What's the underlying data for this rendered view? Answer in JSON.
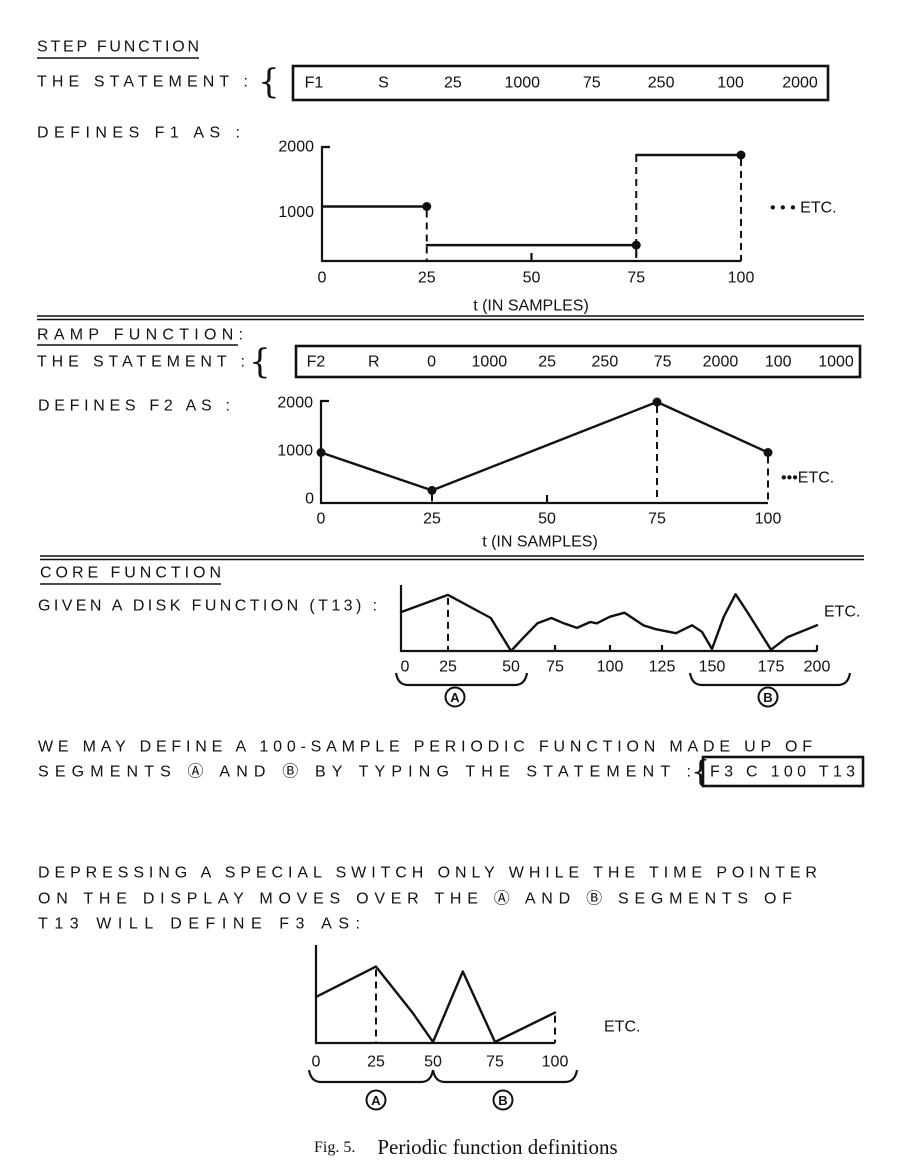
{
  "step": {
    "title": "STEP FUNCTION",
    "statement_label": "THE STATEMENT :",
    "statement_tokens": [
      "F1",
      "S",
      "25",
      "1000",
      "75",
      "250",
      "100",
      "2000"
    ],
    "defines_label": "DEFINES F1 AS :",
    "etc": "• • • ETC."
  },
  "ramp": {
    "title": "RAMP FUNCTION:",
    "statement_label": "THE STATEMENT :",
    "statement_tokens": [
      "F2",
      "R",
      "0",
      "1000",
      "25",
      "250",
      "75",
      "2000",
      "100",
      "1000"
    ],
    "defines_label": "DEFINES F2 AS :",
    "etc": "•••ETC."
  },
  "core": {
    "title": "CORE FUNCTION",
    "given_label": "GIVEN A DISK FUNCTION (T13) :",
    "etc": "ETC.",
    "segment_a": "A",
    "segment_b": "B",
    "para1_line1": "WE MAY DEFINE A 100-SAMPLE PERIODIC FUNCTION MADE UP OF",
    "para1_line2": "SEGMENTS Ⓐ AND Ⓑ BY TYPING THE STATEMENT :",
    "statement": "F3 C 100 T13",
    "para2_line1": "DEPRESSING A SPECIAL SWITCH ONLY WHILE THE TIME POINTER",
    "para2_line2": "ON THE DISPLAY MOVES OVER THE Ⓐ AND Ⓑ SEGMENTS OF",
    "para2_line3": "T13 WILL DEFINE F3 AS:",
    "result_etc": "ETC."
  },
  "caption": {
    "fig": "Fig. 5.",
    "text": "Periodic function definitions"
  },
  "chart_data": [
    {
      "type": "line",
      "name_on_page": "F1",
      "step": true,
      "xlabel": "t (IN SAMPLES)",
      "x_ticks": [
        "0",
        "25",
        "50",
        "75",
        "100"
      ],
      "y_ticks": [
        "2000",
        "1000"
      ],
      "xlim": [
        0,
        100
      ],
      "ylim": [
        0,
        2000
      ],
      "segments": [
        {
          "x0": 0,
          "x1": 25,
          "y": 1000
        },
        {
          "x0": 25,
          "x1": 75,
          "y": 250
        },
        {
          "x0": 75,
          "x1": 100,
          "y": 2000
        }
      ]
    },
    {
      "type": "line",
      "name_on_page": "F2",
      "xlabel": "t (IN SAMPLES)",
      "x_ticks": [
        "0",
        "25",
        "50",
        "75",
        "100"
      ],
      "y_ticks": [
        "2000",
        "1000",
        "0"
      ],
      "xlim": [
        0,
        100
      ],
      "ylim": [
        0,
        2000
      ],
      "x": [
        0,
        25,
        75,
        100
      ],
      "y": [
        1000,
        250,
        2000,
        1000
      ]
    },
    {
      "type": "line",
      "name_on_page": "T13",
      "x_ticks": [
        "0",
        "25",
        "50",
        "75",
        "100",
        "125",
        "150",
        "175",
        "200"
      ],
      "xlim": [
        0,
        200
      ],
      "segments_marked": [
        {
          "label": "A",
          "from": 0,
          "to": 50
        },
        {
          "label": "B",
          "from": 150,
          "to": 200
        }
      ],
      "x": [
        0,
        25,
        42,
        50,
        57,
        65,
        73,
        79,
        85,
        91,
        94,
        100,
        107,
        116,
        122,
        132,
        140,
        145,
        150,
        155,
        160,
        165,
        175,
        184,
        200
      ],
      "y_relative": [
        59,
        85,
        50,
        0,
        20,
        42,
        50,
        42,
        35,
        44,
        42,
        52,
        58,
        39,
        33,
        27,
        39,
        29,
        3,
        52,
        86,
        59,
        2,
        21,
        39
      ]
    },
    {
      "type": "line",
      "name_on_page": "F3",
      "x_ticks": [
        "0",
        "25",
        "50",
        "75",
        "100"
      ],
      "xlim": [
        0,
        100
      ],
      "segments_marked": [
        {
          "label": "A",
          "from": 0,
          "to": 50
        },
        {
          "label": "B",
          "from": 50,
          "to": 100
        }
      ],
      "x": [
        0,
        25,
        41,
        50,
        62,
        75,
        100
      ],
      "y_relative": [
        47,
        78,
        31,
        1,
        73,
        1,
        31
      ]
    }
  ]
}
